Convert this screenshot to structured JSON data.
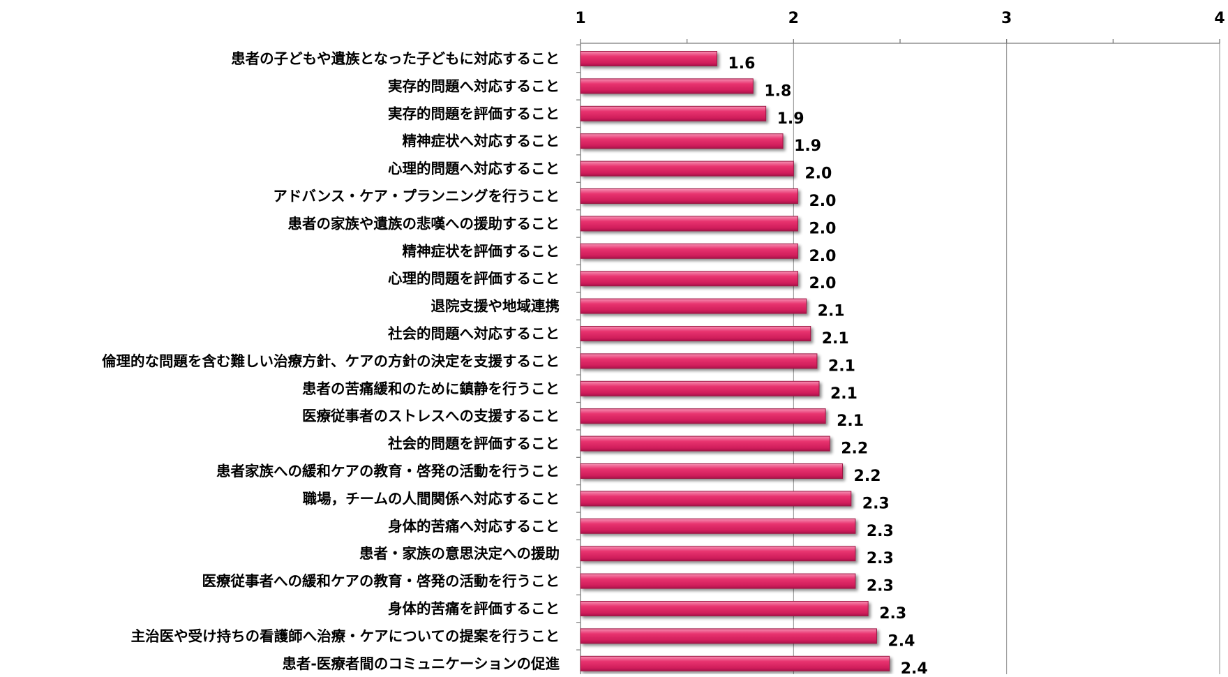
{
  "chart_data": {
    "type": "bar",
    "orientation": "horizontal",
    "title": "",
    "xlabel": "",
    "ylabel": "",
    "xlim": [
      1,
      4
    ],
    "x_ticks": [
      "1",
      "2",
      "3",
      "4"
    ],
    "grid": true,
    "bar_color": "#e8336f",
    "categories": [
      "患者の子どもや遺族となった子どもに対応すること",
      "実存的問題へ対応すること",
      "実存的問題を評価すること",
      "精神症状へ対応すること",
      "心理的問題へ対応すること",
      "アドバンス・ケア・プランニングを行うこと",
      "患者の家族や遺族の悲嘆への援助すること",
      "精神症状を評価すること",
      "心理的問題を評価すること",
      "退院支援や地域連携",
      "社会的問題へ対応すること",
      "倫理的な問題を含む難しい治療方針、ケアの方針の決定を支援すること",
      "患者の苦痛緩和のために鎮静を行うこと",
      "医療従事者のストレスへの支援すること",
      "社会的問題を評価すること",
      "患者家族への緩和ケアの教育・啓発の活動を行うこと",
      "職場，チームの人間関係へ対応すること",
      "身体的苦痛へ対応すること",
      "患者・家族の意思決定への援助",
      "医療従事者への緩和ケアの教育・啓発の活動を行うこと",
      "身体的苦痛を評価すること",
      "主治医や受け持ちの看護師へ治療・ケアについての提案を行うこと",
      "患者-医療者間のコミュニケーションの促進"
    ],
    "values": [
      1.64,
      1.81,
      1.87,
      1.95,
      2.0,
      2.02,
      2.02,
      2.02,
      2.02,
      2.06,
      2.08,
      2.11,
      2.12,
      2.15,
      2.17,
      2.23,
      2.27,
      2.29,
      2.29,
      2.29,
      2.35,
      2.39,
      2.45
    ],
    "value_labels": [
      "1.6",
      "1.8",
      "1.9",
      "1.9",
      "2.0",
      "2.0",
      "2.0",
      "2.0",
      "2.0",
      "2.1",
      "2.1",
      "2.1",
      "2.1",
      "2.1",
      "2.2",
      "2.2",
      "2.3",
      "2.3",
      "2.3",
      "2.3",
      "2.3",
      "2.4",
      "2.4"
    ]
  }
}
